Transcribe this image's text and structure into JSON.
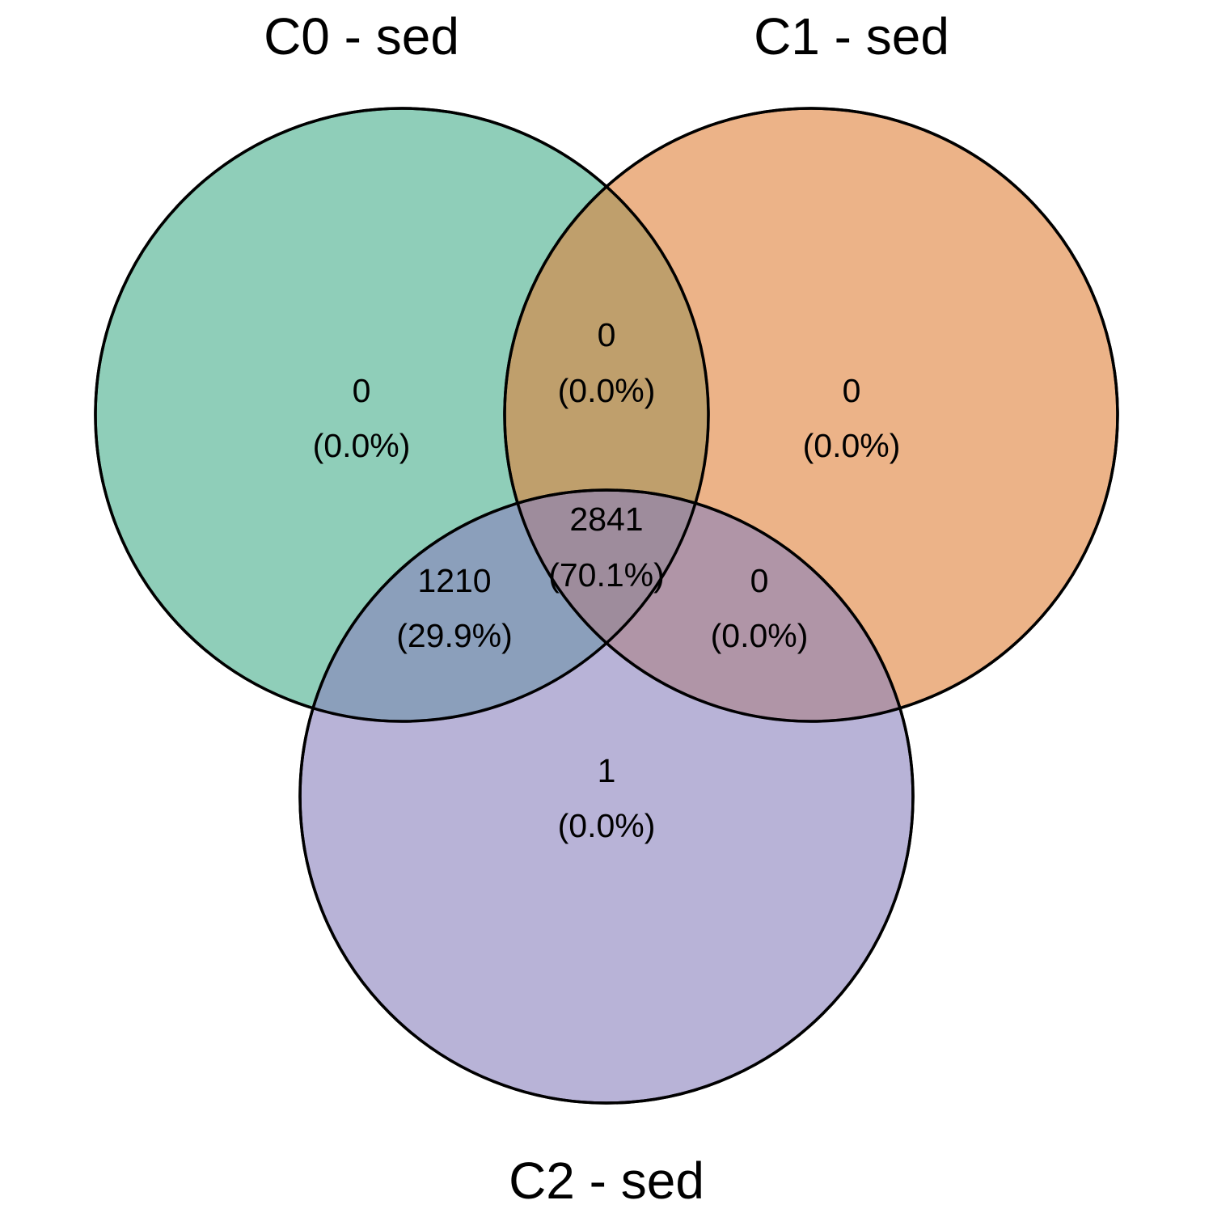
{
  "sets": [
    {
      "id": "c0",
      "label": "C0 - sed",
      "color": "#44AE8A"
    },
    {
      "id": "c1",
      "label": "C1 - sed",
      "color": "#E08038"
    },
    {
      "id": "c2",
      "label": "C2 - sed",
      "color": "#8981BC"
    }
  ],
  "regions": {
    "c0_only": {
      "count": "0",
      "percent": "(0.0%)"
    },
    "c1_only": {
      "count": "0",
      "percent": "(0.0%)"
    },
    "c2_only": {
      "count": "1",
      "percent": "(0.0%)"
    },
    "c0_c1": {
      "count": "0",
      "percent": "(0.0%)"
    },
    "c0_c2": {
      "count": "1210",
      "percent": "(29.9%)"
    },
    "c1_c2": {
      "count": "0",
      "percent": "(0.0%)"
    },
    "c0_c1_c2": {
      "count": "2841",
      "percent": "(70.1%)"
    }
  }
}
